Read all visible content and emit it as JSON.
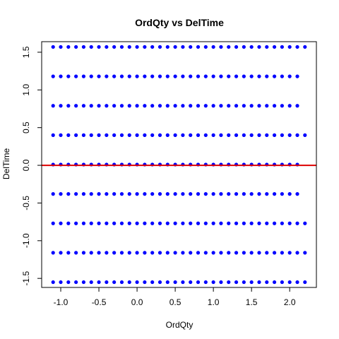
{
  "chart_data": {
    "type": "scatter",
    "title": "OrdQty vs DelTime",
    "xlabel": "OrdQty",
    "ylabel": "DelTime",
    "xlim": [
      -1.25,
      2.35
    ],
    "ylim": [
      -1.62,
      1.64
    ],
    "x_ticks": [
      -1.0,
      -0.5,
      0.0,
      0.5,
      1.0,
      1.5,
      2.0
    ],
    "x_tick_labels": [
      "-1.0",
      "-0.5",
      "0.0",
      "0.5",
      "1.0",
      "1.5",
      "2.0"
    ],
    "y_ticks": [
      -1.5,
      -1.0,
      -0.5,
      0.0,
      0.5,
      1.0,
      1.5
    ],
    "y_tick_labels": [
      "-1.5",
      "-1.0",
      "-0.5",
      "0.0",
      "0.5",
      "1.0",
      "1.5"
    ],
    "grid": false,
    "point_color": "#0000ff",
    "reference_line": {
      "y": 0.0,
      "color": "#dd0000"
    },
    "x_start": -1.1,
    "x_step": 0.1,
    "rows": [
      {
        "y": 1.57,
        "count": 34
      },
      {
        "y": 1.18,
        "count": 33
      },
      {
        "y": 0.79,
        "count": 33
      },
      {
        "y": 0.4,
        "count": 34
      },
      {
        "y": 0.01,
        "count": 33
      },
      {
        "y": -0.38,
        "count": 33
      },
      {
        "y": -0.77,
        "count": 34
      },
      {
        "y": -1.16,
        "count": 34
      },
      {
        "y": -1.55,
        "count": 34
      }
    ]
  }
}
